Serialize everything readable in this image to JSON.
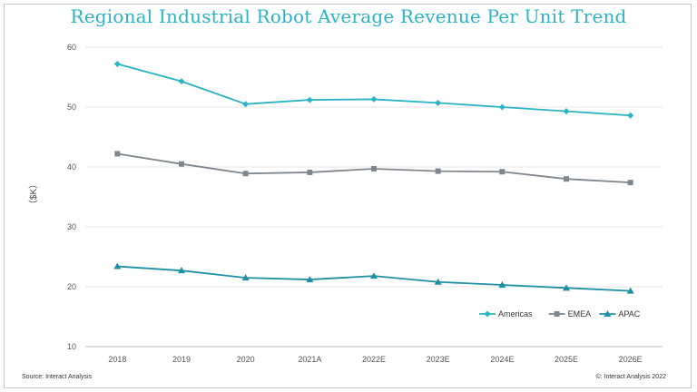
{
  "title": "Regional Industrial Robot Average Revenue Per Unit Trend",
  "footer": {
    "source": "Source: Interact Analysis",
    "copyright": "©: Interact Analysis 2022"
  },
  "chart_data": {
    "type": "line",
    "title": "Regional Industrial Robot Average Revenue Per Unit Trend",
    "xlabel": "",
    "ylabel": "（$K）",
    "ylim": [
      10,
      60
    ],
    "yticks": [
      10,
      20,
      30,
      40,
      50,
      60
    ],
    "grid": true,
    "legend_position": "bottom-right",
    "categories": [
      "2018",
      "2019",
      "2020",
      "2021A",
      "2022E",
      "2023E",
      "2024E",
      "2025E",
      "2026E"
    ],
    "series": [
      {
        "name": "Americas",
        "color": "#2bb3c6",
        "marker": "diamond",
        "values": [
          57.2,
          54.3,
          50.5,
          51.2,
          51.3,
          50.7,
          50.0,
          49.3,
          48.6
        ]
      },
      {
        "name": "EMEA",
        "color": "#7f868c",
        "marker": "square",
        "values": [
          42.2,
          40.5,
          38.9,
          39.1,
          39.7,
          39.3,
          39.2,
          38.0,
          37.4
        ]
      },
      {
        "name": "APAC",
        "color": "#1f8fa3",
        "marker": "triangle",
        "values": [
          23.4,
          22.7,
          21.5,
          21.2,
          21.8,
          20.8,
          20.3,
          19.8,
          19.3
        ]
      }
    ]
  }
}
